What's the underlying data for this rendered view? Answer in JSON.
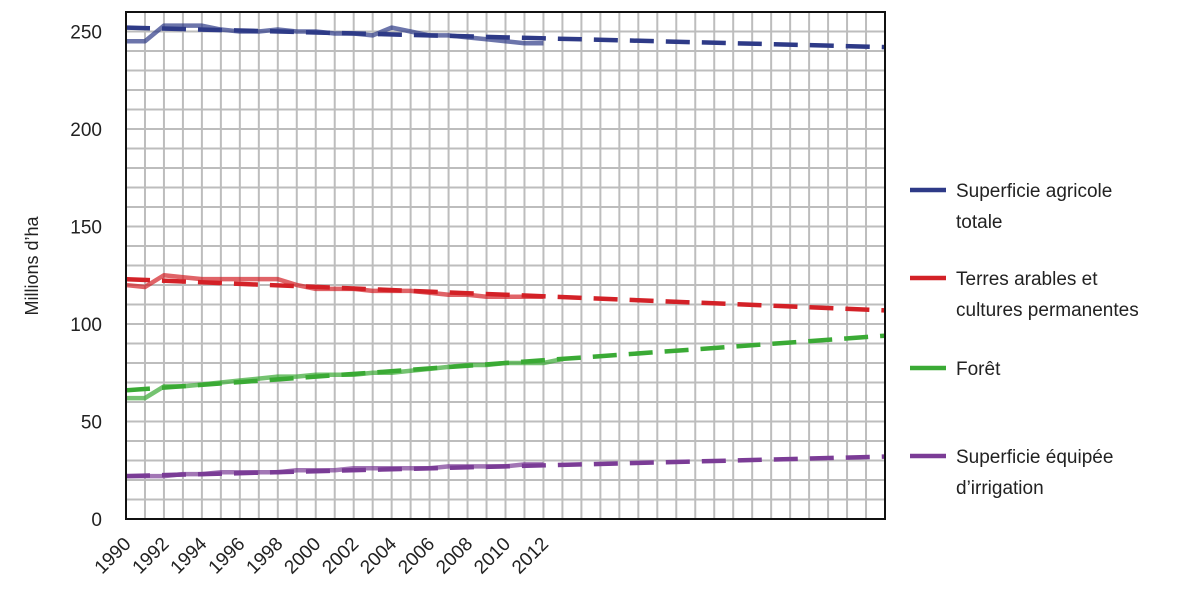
{
  "chart_data": {
    "type": "line",
    "ylabel": "Millions d’ha",
    "xlim": [
      1990,
      2030
    ],
    "ylim": [
      0,
      260
    ],
    "yticks": [
      0,
      50,
      100,
      150,
      200,
      250
    ],
    "xticks": [
      "1990",
      "1992",
      "1994",
      "1996",
      "1998",
      "2000",
      "2002",
      "2004",
      "2006",
      "2008",
      "2010",
      "2012"
    ],
    "grid": true,
    "legend_position": "right",
    "series": [
      {
        "name": "Superficie agricole totale",
        "color": "#2e3a87",
        "observed": {
          "x": [
            1990,
            1991,
            1992,
            1993,
            1994,
            1995,
            1996,
            1997,
            1998,
            1999,
            2000,
            2001,
            2002,
            2003,
            2004,
            2005,
            2006,
            2007,
            2008,
            2009,
            2010,
            2011,
            2012
          ],
          "y": [
            245,
            245,
            253,
            253,
            253,
            251,
            250,
            250,
            251,
            250,
            250,
            249,
            249,
            248,
            252,
            250,
            248,
            248,
            247,
            246,
            245,
            244,
            244
          ]
        },
        "projected": {
          "x": [
            1990,
            2030
          ],
          "y": [
            252,
            242
          ]
        }
      },
      {
        "name": "Terres arables et cultures permanentes",
        "color": "#d32127",
        "observed": {
          "x": [
            1990,
            1991,
            1992,
            1993,
            1994,
            1995,
            1996,
            1997,
            1998,
            1999,
            2000,
            2001,
            2002,
            2003,
            2004,
            2005,
            2006,
            2007,
            2008,
            2009,
            2010,
            2011,
            2012
          ],
          "y": [
            120,
            119,
            125,
            124,
            123,
            123,
            123,
            123,
            123,
            120,
            118,
            118,
            118,
            117,
            117,
            117,
            116,
            115,
            115,
            114,
            114,
            114,
            114
          ]
        },
        "projected": {
          "x": [
            1990,
            2030
          ],
          "y": [
            123,
            107
          ]
        }
      },
      {
        "name": "Forêt",
        "color": "#3aaa35",
        "observed": {
          "x": [
            1990,
            1991,
            1992,
            1993,
            1994,
            1995,
            1996,
            1997,
            1998,
            1999,
            2000,
            2001,
            2002,
            2003,
            2004,
            2005,
            2006,
            2007,
            2008,
            2009,
            2010,
            2011,
            2012,
            2013
          ],
          "y": [
            62,
            62,
            68,
            68,
            69,
            70,
            71,
            72,
            73,
            73,
            74,
            74,
            74,
            75,
            75,
            76,
            77,
            78,
            79,
            79,
            80,
            80,
            80,
            82
          ]
        },
        "projected": {
          "x": [
            1990,
            2030
          ],
          "y": [
            66,
            94
          ]
        }
      },
      {
        "name": "Superficie équipée d’irrigation",
        "color": "#7b3c96",
        "observed": {
          "x": [
            1990,
            1991,
            1992,
            1993,
            1994,
            1995,
            1996,
            1997,
            1998,
            1999,
            2000,
            2001,
            2002,
            2003,
            2004,
            2005,
            2006,
            2007,
            2008,
            2009,
            2010,
            2011,
            2012
          ],
          "y": [
            22,
            22,
            22,
            23,
            23,
            24,
            24,
            24,
            24,
            25,
            25,
            25,
            26,
            26,
            26,
            26,
            26,
            27,
            27,
            27,
            27,
            28,
            28
          ]
        },
        "projected": {
          "x": [
            1990,
            2030
          ],
          "y": [
            22,
            32
          ]
        }
      }
    ],
    "legend": [
      {
        "lines": [
          "Superficie agricole",
          "totale"
        ],
        "color": "#2e3a87"
      },
      {
        "lines": [
          "Terres arables et",
          "cultures permanentes"
        ],
        "color": "#d32127"
      },
      {
        "lines": [
          "Forêt"
        ],
        "color": "#3aaa35"
      },
      {
        "lines": [
          "Superficie équipée",
          "d’irrigation"
        ],
        "color": "#7b3c96"
      }
    ]
  }
}
